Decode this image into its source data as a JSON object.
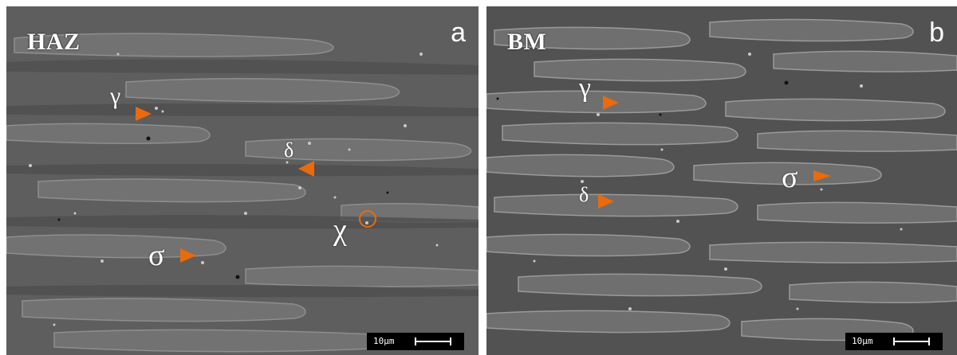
{
  "panels": [
    {
      "id": "a",
      "region_label": "HAZ",
      "panel_letter": "a",
      "scale_label": "10µm",
      "phases": [
        {
          "symbol": "γ",
          "marker": "arrow-right"
        },
        {
          "symbol": "δ",
          "marker": "arrow-left"
        },
        {
          "symbol": "χ",
          "marker": "circle"
        },
        {
          "symbol": "σ",
          "marker": "arrow-right"
        }
      ]
    },
    {
      "id": "b",
      "region_label": "BM",
      "panel_letter": "b",
      "scale_label": "10µm",
      "phases": [
        {
          "symbol": "γ",
          "marker": "arrow-right"
        },
        {
          "symbol": "σ",
          "marker": "arrow-right"
        },
        {
          "symbol": "δ",
          "marker": "arrow-left"
        }
      ]
    }
  ],
  "colors": {
    "marker": "#ea6a0c",
    "background_phase": "#5d5d5d",
    "text": "#ffffff"
  }
}
